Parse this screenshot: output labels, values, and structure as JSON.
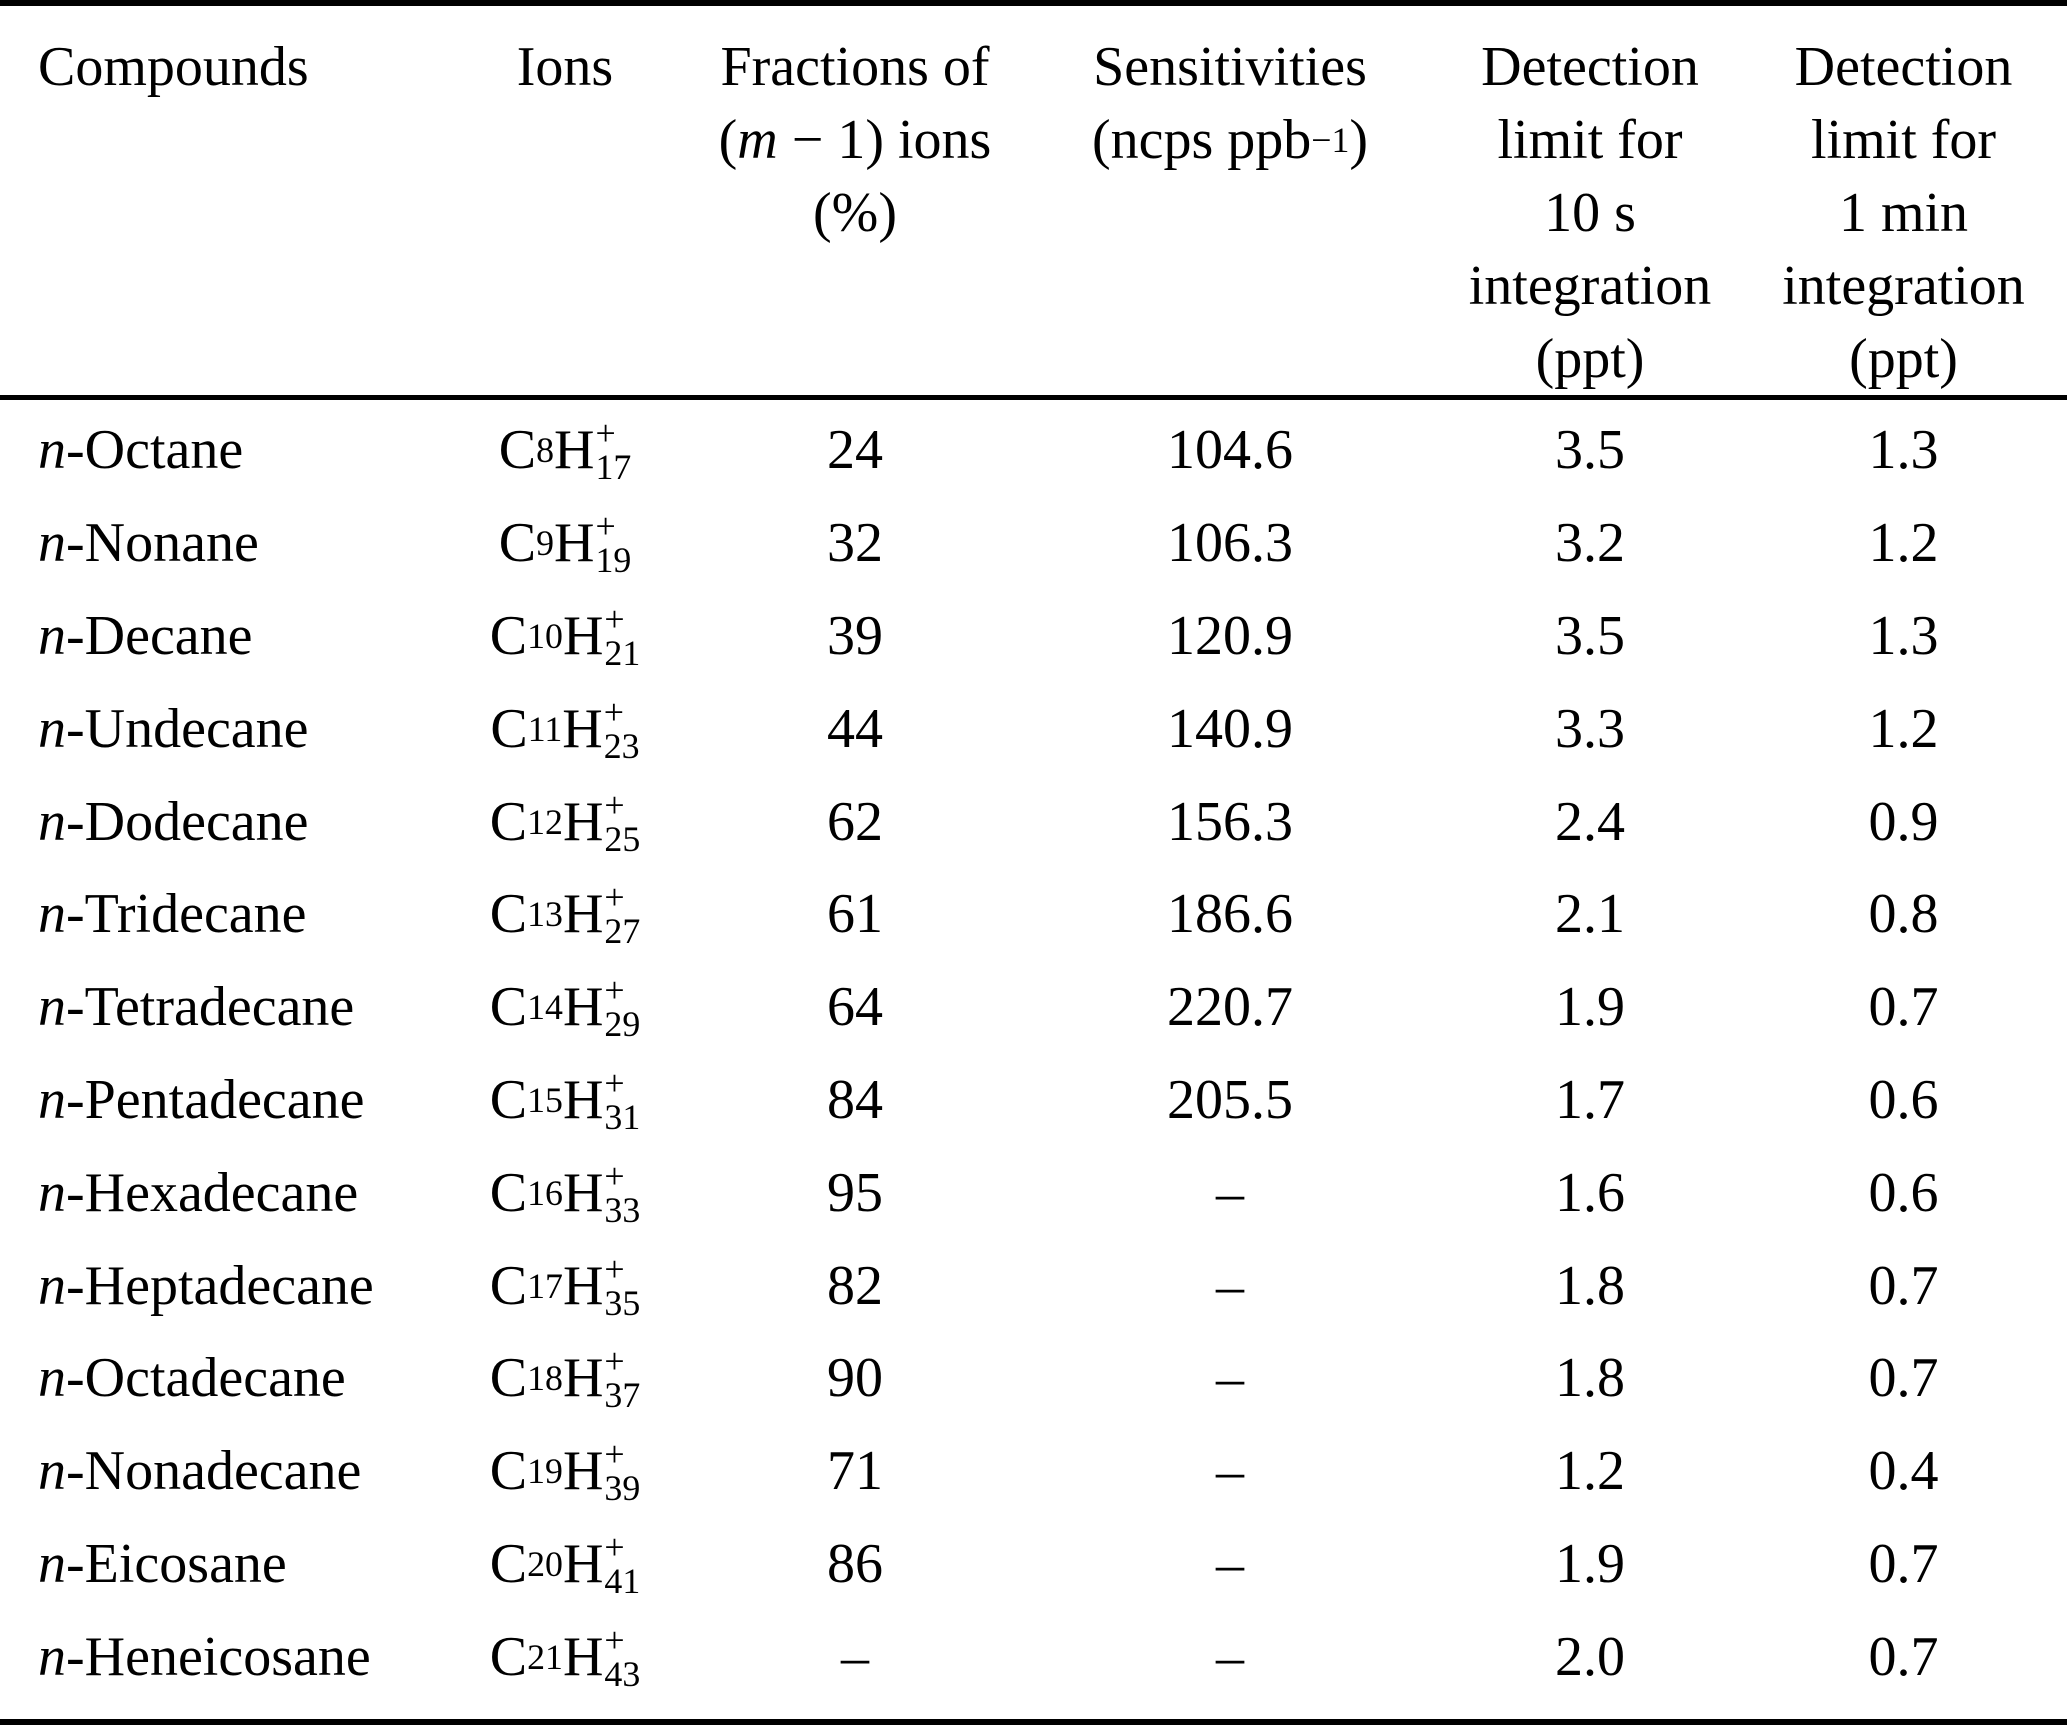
{
  "table": {
    "columns": [
      {
        "id": "compounds",
        "lines": [
          [
            {
              "t": "Compounds"
            }
          ]
        ]
      },
      {
        "id": "ions",
        "lines": [
          [
            {
              "t": "Ions"
            }
          ]
        ]
      },
      {
        "id": "fractions",
        "lines": [
          [
            {
              "t": "Fractions of"
            }
          ],
          [
            {
              "t": "("
            },
            {
              "t": "m",
              "italic": true
            },
            {
              "t": " − 1) ions"
            }
          ],
          [
            {
              "t": "(%)"
            }
          ]
        ]
      },
      {
        "id": "sensitivities",
        "lines": [
          [
            {
              "t": "Sensitivities"
            }
          ],
          [
            {
              "t": "(ncps ppb"
            },
            {
              "t": "−1",
              "sup": true
            },
            {
              "t": ")"
            }
          ]
        ]
      },
      {
        "id": "detection-limit-10s",
        "lines": [
          [
            {
              "t": "Detection"
            }
          ],
          [
            {
              "t": "limit for"
            }
          ],
          [
            {
              "t": "10 s"
            }
          ],
          [
            {
              "t": "integration"
            }
          ],
          [
            {
              "t": "(ppt)"
            }
          ]
        ]
      },
      {
        "id": "detection-limit-1min",
        "lines": [
          [
            {
              "t": "Detection"
            }
          ],
          [
            {
              "t": "limit for"
            }
          ],
          [
            {
              "t": "1 min"
            }
          ],
          [
            {
              "t": "integration"
            }
          ],
          [
            {
              "t": "(ppt)"
            }
          ]
        ]
      }
    ],
    "rows": [
      {
        "prefix": "n",
        "compound": "-Octane",
        "ion_c": "8",
        "ion_sup": "+",
        "ion_h": "17",
        "fraction": "24",
        "sensitivity": "104.6",
        "dl_10s": "3.5",
        "dl_1min": "1.3"
      },
      {
        "prefix": "n",
        "compound": "-Nonane",
        "ion_c": "9",
        "ion_sup": "+",
        "ion_h": "19",
        "fraction": "32",
        "sensitivity": "106.3",
        "dl_10s": "3.2",
        "dl_1min": "1.2"
      },
      {
        "prefix": "n",
        "compound": "-Decane",
        "ion_c": "10",
        "ion_sup": "+",
        "ion_h": "21",
        "fraction": "39",
        "sensitivity": "120.9",
        "dl_10s": "3.5",
        "dl_1min": "1.3"
      },
      {
        "prefix": "n",
        "compound": "-Undecane",
        "ion_c": "11",
        "ion_sup": "+",
        "ion_h": "23",
        "fraction": "44",
        "sensitivity": "140.9",
        "dl_10s": "3.3",
        "dl_1min": "1.2"
      },
      {
        "prefix": "n",
        "compound": "-Dodecane",
        "ion_c": "12",
        "ion_sup": "+",
        "ion_h": "25",
        "fraction": "62",
        "sensitivity": "156.3",
        "dl_10s": "2.4",
        "dl_1min": "0.9"
      },
      {
        "prefix": "n",
        "compound": "-Tridecane",
        "ion_c": "13",
        "ion_sup": "+",
        "ion_h": "27",
        "fraction": "61",
        "sensitivity": "186.6",
        "dl_10s": "2.1",
        "dl_1min": "0.8"
      },
      {
        "prefix": "n",
        "compound": "-Tetradecane",
        "ion_c": "14",
        "ion_sup": "+",
        "ion_h": "29",
        "fraction": "64",
        "sensitivity": "220.7",
        "dl_10s": "1.9",
        "dl_1min": "0.7"
      },
      {
        "prefix": "n",
        "compound": "-Pentadecane",
        "ion_c": "15",
        "ion_sup": "+",
        "ion_h": "31",
        "fraction": "84",
        "sensitivity": "205.5",
        "dl_10s": "1.7",
        "dl_1min": "0.6"
      },
      {
        "prefix": "n",
        "compound": "-Hexadecane",
        "ion_c": "16",
        "ion_sup": "+",
        "ion_h": "33",
        "fraction": "95",
        "sensitivity": "–",
        "dl_10s": "1.6",
        "dl_1min": "0.6"
      },
      {
        "prefix": "n",
        "compound": "-Heptadecane",
        "ion_c": "17",
        "ion_sup": "+",
        "ion_h": "35",
        "fraction": "82",
        "sensitivity": "–",
        "dl_10s": "1.8",
        "dl_1min": "0.7"
      },
      {
        "prefix": "n",
        "compound": "-Octadecane",
        "ion_c": "18",
        "ion_sup": "+",
        "ion_h": "37",
        "fraction": "90",
        "sensitivity": "–",
        "dl_10s": "1.8",
        "dl_1min": "0.7"
      },
      {
        "prefix": "n",
        "compound": "-Nonadecane",
        "ion_c": "19",
        "ion_sup": "+",
        "ion_h": "39",
        "fraction": "71",
        "sensitivity": "–",
        "dl_10s": "1.2",
        "dl_1min": "0.4"
      },
      {
        "prefix": "n",
        "compound": "-Eicosane",
        "ion_c": "20",
        "ion_sup": "+",
        "ion_h": "41",
        "fraction": "86",
        "sensitivity": "–",
        "dl_10s": "1.9",
        "dl_1min": "0.7"
      },
      {
        "prefix": "n",
        "compound": "-Heneicosane",
        "ion_c": "21",
        "ion_sup": "+",
        "ion_h": "43",
        "fraction": "–",
        "sensitivity": "–",
        "dl_10s": "2.0",
        "dl_1min": "0.7"
      }
    ]
  }
}
